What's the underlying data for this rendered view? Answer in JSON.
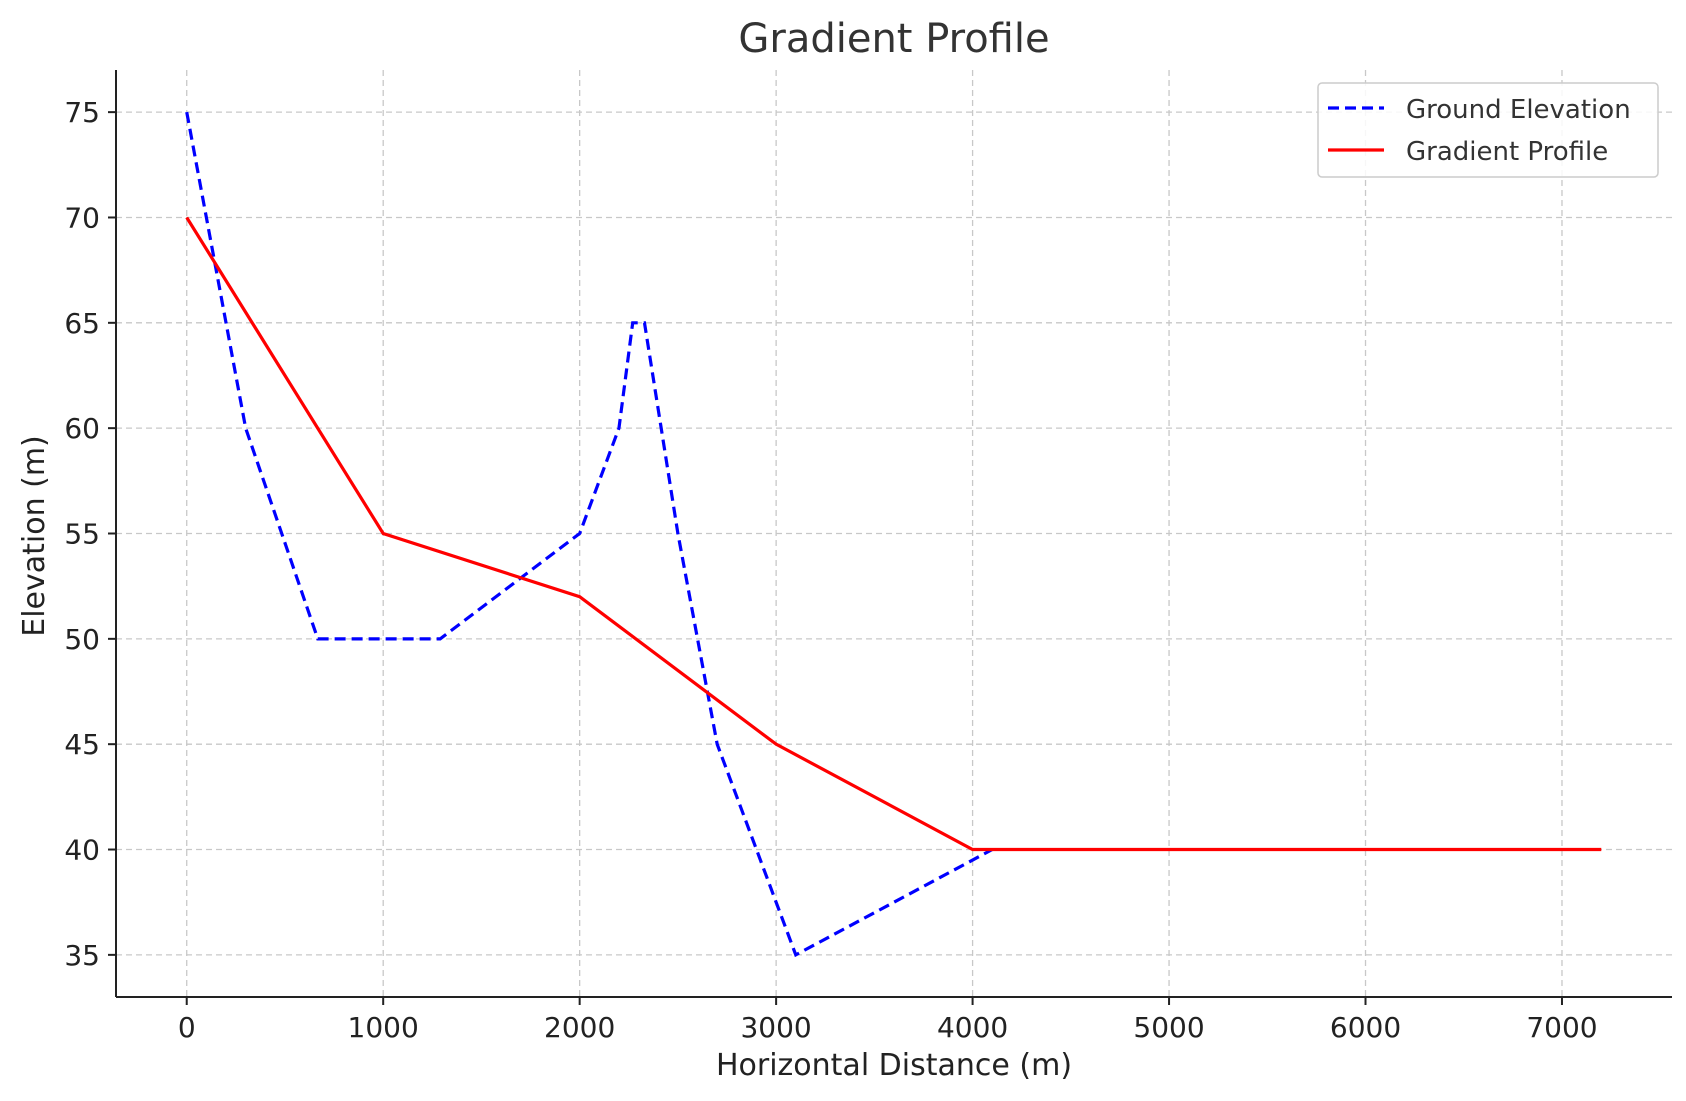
{
  "chart_data": {
    "type": "line",
    "title": "Gradient Profile",
    "xlabel": "Horizontal Distance (m)",
    "ylabel": "Elevation (m)",
    "xlim": [
      -360,
      7560
    ],
    "ylim": [
      33,
      77
    ],
    "xticks": [
      0,
      1000,
      2000,
      3000,
      4000,
      5000,
      6000,
      7000
    ],
    "yticks": [
      35,
      40,
      45,
      50,
      55,
      60,
      65,
      70,
      75
    ],
    "grid": true,
    "legend_position": "top-right",
    "series": [
      {
        "name": "Ground Elevation",
        "color": "#0000ff",
        "line_style": "dashed",
        "x": [
          0,
          100,
          200,
          300,
          667,
          1000,
          1290,
          2000,
          2200,
          2270,
          2330,
          2500,
          2700,
          2900,
          3100,
          4000,
          4100
        ],
        "y": [
          75,
          70,
          65,
          60,
          50,
          50,
          50,
          55,
          60,
          65,
          65,
          55,
          45,
          40,
          35,
          39.5,
          40
        ]
      },
      {
        "name": "Gradient Profile",
        "color": "#ff0000",
        "line_style": "solid",
        "x": [
          0,
          1000,
          2000,
          3000,
          4000,
          7200
        ],
        "y": [
          70,
          55,
          52,
          45,
          40,
          40
        ]
      }
    ]
  }
}
